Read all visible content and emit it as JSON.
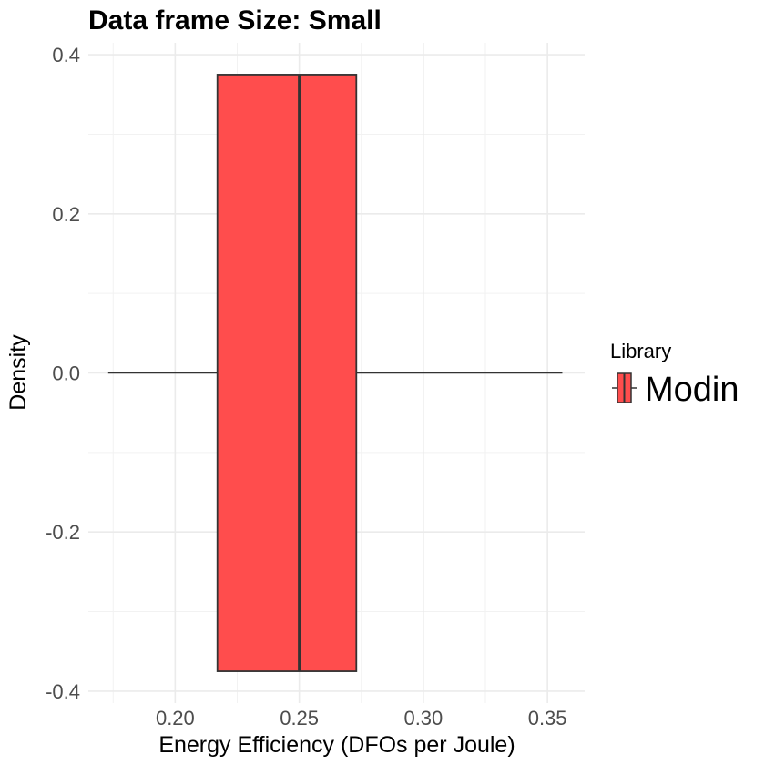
{
  "chart_data": {
    "type": "boxplot",
    "title": "Data frame Size: Small",
    "xlabel": "Energy Efficiency (DFOs per Joule)",
    "ylabel": "Density",
    "xlim": [
      0.165,
      0.365
    ],
    "ylim": [
      -0.415,
      0.415
    ],
    "x_ticks": [
      0.2,
      0.25,
      0.3,
      0.35
    ],
    "x_tick_labels": [
      "0.20",
      "0.25",
      "0.30",
      "0.35"
    ],
    "y_ticks": [
      -0.4,
      -0.2,
      0.0,
      0.2,
      0.4
    ],
    "y_tick_labels": [
      "-0.4",
      "-0.2",
      "0.0",
      "0.2",
      "0.4"
    ],
    "grid": true,
    "legend": {
      "title": "Library",
      "position": "right",
      "entries": [
        "Modin"
      ]
    },
    "series": [
      {
        "name": "Modin",
        "color": "#ff4d4d",
        "min": 0.173,
        "q1": 0.217,
        "median": 0.25,
        "q3": 0.273,
        "max": 0.356,
        "box_y_range": [
          -0.375,
          0.375
        ]
      }
    ]
  }
}
